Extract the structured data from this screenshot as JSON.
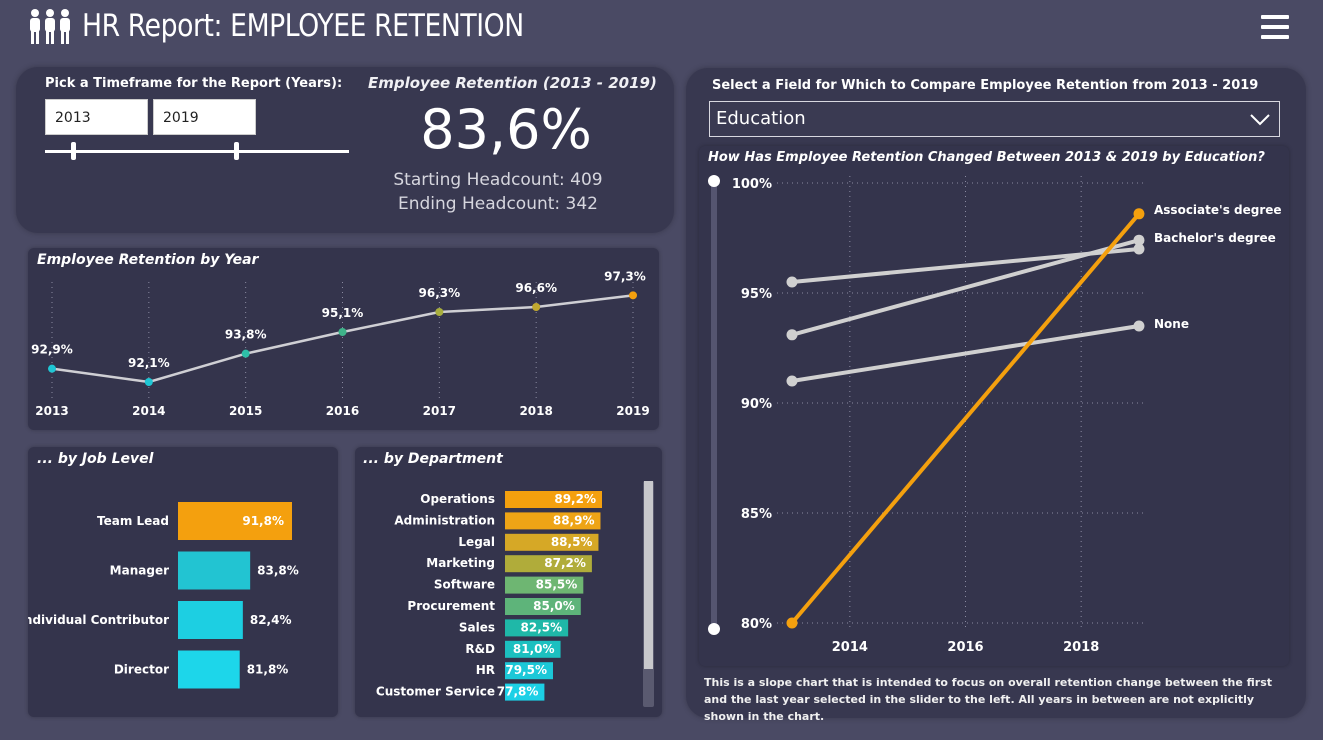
{
  "header": {
    "title": "HR Report: EMPLOYEE RETENTION",
    "logo_icon": "people-icon",
    "menu_icon": "hamburger-menu-icon"
  },
  "colors": {
    "background": "#4a4a64",
    "card": "#383850",
    "orange": "#f4a00e",
    "teal": "#1fc6d4",
    "gray_line": "#d0d0d0"
  },
  "timeframe": {
    "label": "Pick a Timeframe for the Report (Years):",
    "start_year": "2013",
    "end_year": "2019"
  },
  "summary": {
    "title": "Employee Retention (2013 - 2019)",
    "value": "83,6%",
    "starting": "Starting Headcount: 409",
    "ending": "Ending Headcount: 342"
  },
  "compare": {
    "label": "Select a Field for Which to Compare Employee Retention from 2013 - 2019",
    "selected": "Education",
    "chart_title": "How Has Employee Retention Changed Between 2013 & 2019 by Education?",
    "footnote": "This is a slope chart that is intended to focus on overall retention change between the first and the last year selected in the slider to the left. All years in between are not explicitly shown in the chart."
  },
  "chart_data": [
    {
      "type": "line",
      "title": "Employee Retention by Year",
      "x": [
        "2013",
        "2014",
        "2015",
        "2016",
        "2017",
        "2018",
        "2019"
      ],
      "values": [
        92.9,
        92.1,
        93.8,
        95.1,
        96.3,
        96.6,
        97.3
      ],
      "labels": [
        "92,9%",
        "92,1%",
        "93,8%",
        "95,1%",
        "96,3%",
        "96,6%",
        "97,3%"
      ],
      "point_colors": [
        "#1fc6d4",
        "#1fc6d4",
        "#2dbfa8",
        "#3fb48a",
        "#a8ae3e",
        "#c0a830",
        "#f4a00e"
      ],
      "ylim": [
        91.5,
        97.5
      ],
      "grid": "vertical dotted"
    },
    {
      "type": "bar",
      "title": "... by Job Level",
      "orientation": "horizontal",
      "categories": [
        "Team Lead",
        "Manager",
        "Individual Contributor",
        "Director"
      ],
      "values": [
        91.8,
        83.8,
        82.4,
        81.8
      ],
      "labels": [
        "91,8%",
        "83,8%",
        "82,4%",
        "81,8%"
      ],
      "colors": [
        "#f4a00e",
        "#22c4d2",
        "#1dcfe2",
        "#1dd6ea"
      ]
    },
    {
      "type": "bar",
      "title": "... by Department",
      "orientation": "horizontal",
      "categories": [
        "Operations",
        "Administration",
        "Legal",
        "Marketing",
        "Software",
        "Procurement",
        "Sales",
        "R&D",
        "HR",
        "Customer Service"
      ],
      "values": [
        89.2,
        88.9,
        88.5,
        87.2,
        85.5,
        85.0,
        82.5,
        81.0,
        79.5,
        77.8
      ],
      "labels": [
        "89,2%",
        "88,9%",
        "88,5%",
        "87,2%",
        "85,5%",
        "85,0%",
        "82,5%",
        "81,0%",
        "79,5%",
        "77,8%"
      ],
      "colors": [
        "#f4a00e",
        "#eea416",
        "#d6a826",
        "#b0ac3a",
        "#6eb672",
        "#5eb47a",
        "#1fb8a8",
        "#1cc0c0",
        "#1cc8d8",
        "#1cd0e6"
      ]
    },
    {
      "type": "line",
      "title": "How Has Employee Retention Changed Between 2013 & 2019 by Education?",
      "x_ticks": [
        "2014",
        "2016",
        "2018"
      ],
      "y_ticks": [
        "100%",
        "95%",
        "90%",
        "85%",
        "80%"
      ],
      "ylim": [
        80,
        100
      ],
      "x_range": [
        2013,
        2019
      ],
      "series": [
        {
          "name": "Associate's degree",
          "x": [
            2013,
            2019
          ],
          "values": [
            80.0,
            98.6
          ],
          "color": "#f4a00e"
        },
        {
          "name": "Bachelor's degree",
          "x": [
            2013,
            2019
          ],
          "values": [
            93.1,
            97.4
          ],
          "color": "#d0d0d0"
        },
        {
          "name": "",
          "x": [
            2013,
            2019
          ],
          "values": [
            95.5,
            97.0
          ],
          "color": "#d0d0d0"
        },
        {
          "name": "None",
          "x": [
            2013,
            2019
          ],
          "values": [
            91.0,
            93.5
          ],
          "color": "#d0d0d0"
        }
      ]
    }
  ]
}
